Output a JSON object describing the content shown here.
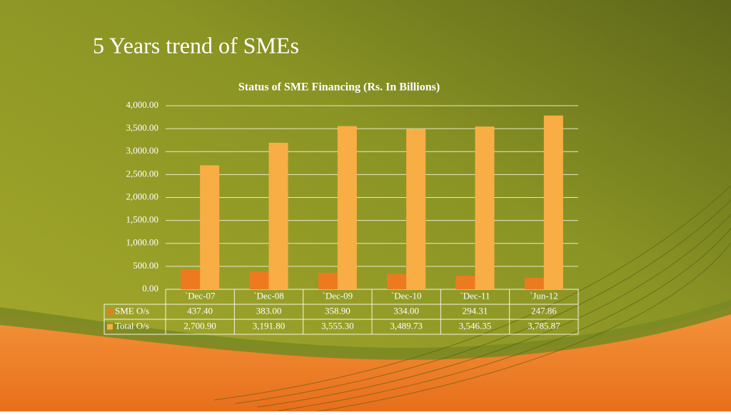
{
  "slide": {
    "title": "5 Years trend of SMEs"
  },
  "chart_data": {
    "type": "bar",
    "title": "Status of SME Financing (Rs. In Billions)",
    "categories": [
      "`Dec-07",
      "`Dec-08",
      "`Dec-09",
      "`Dec-10",
      "`Dec-11",
      "`Jun-12"
    ],
    "series": [
      {
        "name": "SME O/s",
        "color": "#ee7a1f",
        "values": [
          437.4,
          383,
          358.9,
          334,
          294.31,
          247.86
        ],
        "value_labels": [
          "437.40",
          "383.00",
          "358.90",
          "334.00",
          "294.31",
          "247.86"
        ]
      },
      {
        "name": "Total O/s",
        "color": "#f9ad45",
        "values": [
          2700.9,
          3191.8,
          3555.3,
          3489.73,
          3546.35,
          3785.87
        ],
        "value_labels": [
          "2,700.90",
          "3,191.80",
          "3,555.30",
          "3,489.73",
          "3,546.35",
          "3,785.87"
        ]
      }
    ],
    "ylim": [
      0,
      4000
    ],
    "yticks": [
      {
        "value": 0,
        "label": "0.00"
      },
      {
        "value": 500,
        "label": "500.00"
      },
      {
        "value": 1000,
        "label": "1,000.00"
      },
      {
        "value": 1500,
        "label": "1,500.00"
      },
      {
        "value": 2000,
        "label": "2,000.00"
      },
      {
        "value": 2500,
        "label": "2,500.00"
      },
      {
        "value": 3000,
        "label": "3,000.00"
      },
      {
        "value": 3500,
        "label": "3,500.00"
      },
      {
        "value": 4000,
        "label": "4,000.00"
      }
    ],
    "grid": true
  }
}
